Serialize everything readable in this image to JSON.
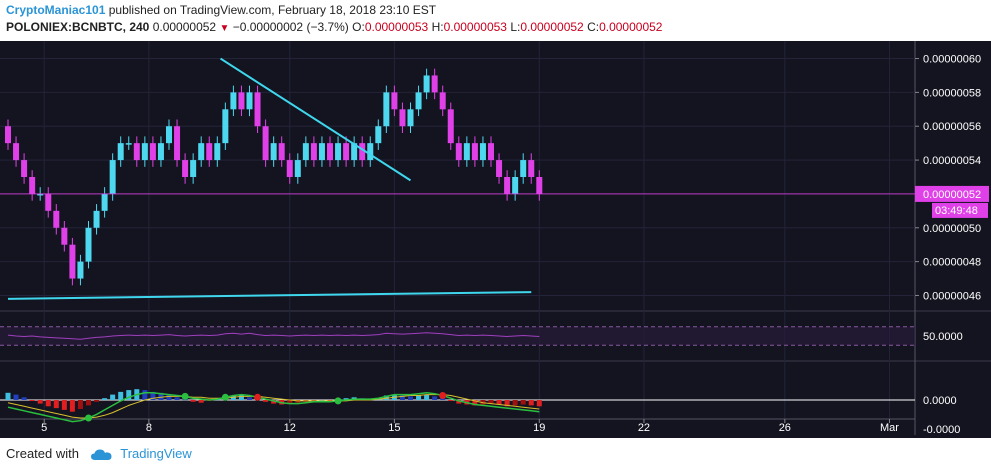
{
  "header": {
    "author": "CryptoManiac101",
    "published_text": "published on TradingView.com, February 18, 2018 23:10 EST",
    "symbol": "POLONIEX:BCNBTC, 240",
    "last": "0.00000052",
    "change": "−0.00000002 (−3.7%)",
    "ohlc": [
      {
        "label": "O:",
        "value": "0.00000053"
      },
      {
        "label": "H:",
        "value": "0.00000053"
      },
      {
        "label": "L:",
        "value": "0.00000052"
      },
      {
        "label": "C:",
        "value": "0.00000052"
      }
    ]
  },
  "footer": {
    "created_with": "Created with",
    "brand": "TradingView"
  },
  "colors": {
    "background": "#141420",
    "bull": "#4dd8f0",
    "bear": "#e040e8",
    "trendline": "#3fd7ee",
    "rsi": "#a040c0",
    "macd_line": "#2bbf3f",
    "signal_line": "#d7c02c",
    "cross_up": "#2bbf3f",
    "cross_down": "#e02020"
  },
  "chart_data": [
    {
      "type": "candlestick",
      "y_ticks": [
        "0.00000060",
        "0.00000058",
        "0.00000056",
        "0.00000054",
        "0.00000052",
        "0.00000050",
        "0.00000048",
        "0.00000046"
      ],
      "ylim": [
        4.52e-07,
        6.08e-07
      ],
      "x_ticks": [
        "5",
        "8",
        "12",
        "15",
        "19",
        "22",
        "26",
        "Mar"
      ],
      "last_price_label": "0.00000052",
      "countdown": "03:49:48",
      "price_line": 5.2e-07,
      "closes": [
        5.5e-07,
        5.4e-07,
        5.3e-07,
        5.2e-07,
        5.2e-07,
        5.1e-07,
        5e-07,
        4.9e-07,
        4.7e-07,
        4.8e-07,
        5e-07,
        5.1e-07,
        5.2e-07,
        5.4e-07,
        5.5e-07,
        5.5e-07,
        5.4e-07,
        5.5e-07,
        5.4e-07,
        5.5e-07,
        5.6e-07,
        5.4e-07,
        5.3e-07,
        5.4e-07,
        5.5e-07,
        5.4e-07,
        5.5e-07,
        5.7e-07,
        5.8e-07,
        5.7e-07,
        5.8e-07,
        5.6e-07,
        5.4e-07,
        5.5e-07,
        5.4e-07,
        5.3e-07,
        5.4e-07,
        5.5e-07,
        5.4e-07,
        5.5e-07,
        5.4e-07,
        5.5e-07,
        5.4e-07,
        5.5e-07,
        5.4e-07,
        5.5e-07,
        5.6e-07,
        5.8e-07,
        5.7e-07,
        5.6e-07,
        5.7e-07,
        5.8e-07,
        5.9e-07,
        5.8e-07,
        5.7e-07,
        5.5e-07,
        5.4e-07,
        5.5e-07,
        5.4e-07,
        5.5e-07,
        5.4e-07,
        5.3e-07,
        5.2e-07,
        5.3e-07,
        5.4e-07,
        5.3e-07,
        5.2e-07
      ],
      "trendlines": [
        {
          "x": [
            26.4,
            50.0
          ],
          "y": [
            6e-07,
            5.28e-07
          ]
        },
        {
          "x": [
            0.0,
            65.0
          ],
          "y": [
            4.58e-07,
            4.62e-07
          ]
        }
      ]
    },
    {
      "type": "line",
      "panel": "RSI",
      "y_ticks": [
        "50.0000"
      ],
      "ylim": [
        0,
        100
      ],
      "bands": [
        70,
        30
      ],
      "values": [
        52,
        50,
        49,
        50,
        48,
        47,
        46,
        45,
        44,
        43,
        45,
        47,
        48,
        50,
        51,
        52,
        51,
        52,
        51,
        52,
        53,
        51,
        50,
        51,
        52,
        51,
        52,
        55,
        56,
        54,
        56,
        53,
        51,
        52,
        51,
        50,
        51,
        52,
        51,
        52,
        51,
        52,
        51,
        52,
        51,
        52,
        53,
        56,
        55,
        54,
        55,
        56,
        57,
        56,
        55,
        53,
        51,
        52,
        51,
        52,
        51,
        50,
        49,
        50,
        51,
        50,
        49
      ]
    },
    {
      "type": "bar",
      "panel": "MACD",
      "y_ticks": [
        "0.0000",
        "-0.0000"
      ],
      "histogram": [
        0.8,
        0.6,
        0.3,
        -0.1,
        -0.4,
        -0.7,
        -0.9,
        -1.1,
        -1.3,
        -1.0,
        -0.6,
        -0.2,
        0.2,
        0.6,
        0.9,
        1.1,
        1.2,
        1.1,
        0.9,
        0.8,
        0.6,
        0.3,
        0.1,
        -0.2,
        -0.3,
        -0.1,
        0.1,
        0.3,
        0.5,
        0.5,
        0.3,
        0.1,
        -0.2,
        -0.4,
        -0.5,
        -0.4,
        -0.3,
        -0.2,
        -0.1,
        0.0,
        -0.1,
        0.1,
        0.2,
        0.3,
        0.2,
        0.1,
        0.2,
        0.5,
        0.6,
        0.5,
        0.4,
        0.5,
        0.6,
        0.4,
        0.2,
        -0.1,
        -0.4,
        -0.5,
        -0.6,
        -0.5,
        -0.4,
        -0.5,
        -0.7,
        -0.6,
        -0.5,
        -0.6,
        -0.7
      ],
      "macd": [
        -0.8,
        -1.0,
        -1.2,
        -1.4,
        -1.6,
        -1.8,
        -2.0,
        -2.2,
        -2.4,
        -2.3,
        -2.0,
        -1.6,
        -1.1,
        -0.6,
        -0.1,
        0.3,
        0.6,
        0.8,
        0.8,
        0.7,
        0.6,
        0.5,
        0.4,
        0.2,
        0.1,
        0.0,
        0.1,
        0.3,
        0.5,
        0.6,
        0.5,
        0.3,
        0.1,
        -0.1,
        -0.3,
        -0.4,
        -0.4,
        -0.3,
        -0.2,
        -0.2,
        -0.2,
        -0.1,
        0.0,
        0.1,
        0.1,
        0.1,
        0.2,
        0.4,
        0.6,
        0.6,
        0.6,
        0.7,
        0.8,
        0.7,
        0.5,
        0.2,
        -0.1,
        -0.3,
        -0.5,
        -0.6,
        -0.7,
        -0.8,
        -0.9,
        -1.0,
        -1.1,
        -1.2,
        -1.3
      ],
      "signal": [
        -0.3,
        -0.5,
        -0.7,
        -0.9,
        -1.1,
        -1.3,
        -1.5,
        -1.7,
        -1.9,
        -2.0,
        -2.0,
        -1.9,
        -1.7,
        -1.4,
        -1.0,
        -0.6,
        -0.3,
        0.0,
        0.2,
        0.3,
        0.4,
        0.4,
        0.4,
        0.3,
        0.3,
        0.2,
        0.2,
        0.2,
        0.3,
        0.4,
        0.4,
        0.4,
        0.3,
        0.2,
        0.1,
        0.0,
        -0.1,
        -0.1,
        -0.1,
        -0.1,
        -0.1,
        -0.1,
        -0.1,
        0.0,
        0.0,
        0.0,
        0.1,
        0.2,
        0.3,
        0.4,
        0.5,
        0.5,
        0.6,
        0.6,
        0.6,
        0.5,
        0.3,
        0.1,
        -0.1,
        -0.3,
        -0.4,
        -0.5,
        -0.6,
        -0.7,
        -0.8,
        -0.9,
        -1.0
      ]
    }
  ]
}
